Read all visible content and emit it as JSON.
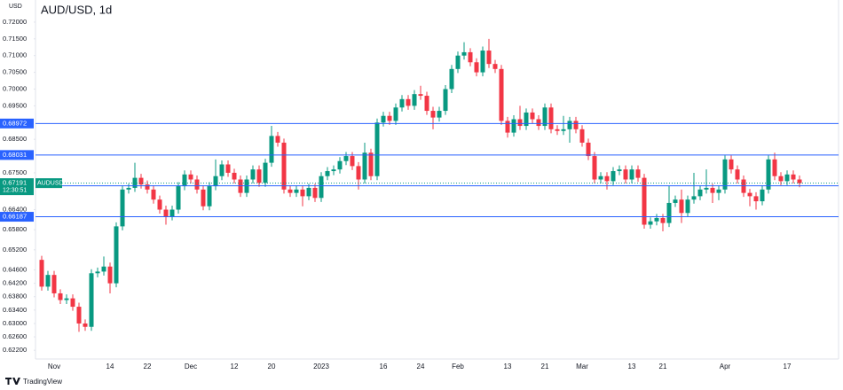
{
  "chart_data": {
    "type": "candlestick",
    "title": "AUD/USD, 1d",
    "y_axis_label": "USD",
    "categories": [
      null,
      null,
      "Nov",
      null,
      null,
      null,
      null,
      null,
      null,
      null,
      null,
      "14",
      null,
      null,
      null,
      null,
      null,
      "22",
      null,
      null,
      null,
      null,
      null,
      null,
      "Dec",
      null,
      null,
      null,
      null,
      null,
      null,
      "12",
      null,
      null,
      null,
      null,
      null,
      "20",
      null,
      null,
      null,
      null,
      null,
      null,
      null,
      "2023",
      null,
      null,
      null,
      null,
      null,
      null,
      null,
      null,
      null,
      "16",
      null,
      null,
      null,
      null,
      null,
      "24",
      null,
      null,
      null,
      null,
      null,
      "Feb",
      null,
      null,
      null,
      null,
      null,
      null,
      null,
      "13",
      null,
      null,
      null,
      null,
      null,
      "21",
      null,
      null,
      null,
      null,
      null,
      "Mar",
      null,
      null,
      null,
      null,
      null,
      null,
      null,
      "13",
      null,
      null,
      null,
      null,
      "21",
      null,
      null,
      null,
      null,
      null,
      null,
      null,
      null,
      null,
      "Apr",
      null,
      null,
      null,
      null,
      null,
      null,
      null,
      null,
      null,
      "17",
      null,
      null
    ],
    "open": [
      0.649,
      0.641,
      0.6445,
      0.639,
      0.637,
      0.6375,
      0.635,
      0.63,
      0.629,
      0.645,
      0.6455,
      0.647,
      0.642,
      0.659,
      0.67,
      0.6705,
      0.6735,
      0.6715,
      0.67,
      0.667,
      0.664,
      0.662,
      0.664,
      0.671,
      0.6745,
      0.673,
      0.67,
      0.665,
      0.671,
      0.674,
      0.6775,
      0.675,
      0.673,
      0.669,
      0.673,
      0.676,
      0.672,
      0.678,
      0.686,
      0.684,
      0.67,
      0.669,
      0.67,
      0.668,
      0.6705,
      0.6675,
      0.674,
      0.6755,
      0.676,
      0.6785,
      0.68,
      0.677,
      0.673,
      0.681,
      0.674,
      0.69,
      0.692,
      0.6905,
      0.6945,
      0.697,
      0.695,
      0.6985,
      0.698,
      0.6935,
      0.6915,
      0.6935,
      0.7,
      0.706,
      0.71,
      0.711,
      0.708,
      0.705,
      0.7115,
      0.7075,
      0.706,
      0.6905,
      0.687,
      0.691,
      0.689,
      0.693,
      0.691,
      0.689,
      0.6945,
      0.688,
      0.6875,
      0.688,
      0.6905,
      0.688,
      0.684,
      0.68,
      0.673,
      0.674,
      0.6725,
      0.6755,
      0.676,
      0.673,
      0.676,
      0.6735,
      0.6595,
      0.6605,
      0.6615,
      0.66,
      0.666,
      0.667,
      0.663,
      0.667,
      0.668,
      0.67,
      0.6705,
      0.669,
      0.67,
      0.679,
      0.676,
      0.673,
      0.669,
      0.668,
      0.6665,
      0.67,
      0.679,
      0.674,
      0.6725,
      0.6745,
      0.673
    ],
    "high": [
      0.6502,
      0.6457,
      0.6457,
      0.6402,
      0.6387,
      0.6387,
      0.6362,
      0.6312,
      0.6462,
      0.6467,
      0.65,
      0.6482,
      0.6602,
      0.6712,
      0.6717,
      0.678,
      0.6747,
      0.6727,
      0.6712,
      0.6682,
      0.6652,
      0.6652,
      0.6722,
      0.6757,
      0.6757,
      0.6742,
      0.6712,
      0.6722,
      0.679,
      0.6787,
      0.6787,
      0.6762,
      0.6742,
      0.6742,
      0.6772,
      0.6772,
      0.6792,
      0.689,
      0.6872,
      0.6852,
      0.6712,
      0.6712,
      0.6712,
      0.6717,
      0.6717,
      0.6752,
      0.6767,
      0.6772,
      0.6797,
      0.6812,
      0.6812,
      0.6782,
      0.684,
      0.6822,
      0.6912,
      0.6932,
      0.6932,
      0.6957,
      0.6982,
      0.6982,
      0.6997,
      0.701,
      0.6992,
      0.6947,
      0.6947,
      0.7012,
      0.7072,
      0.7112,
      0.714,
      0.7122,
      0.7092,
      0.7127,
      0.715,
      0.7087,
      0.7072,
      0.6917,
      0.6922,
      0.695,
      0.6942,
      0.6942,
      0.6922,
      0.6957,
      0.6957,
      0.6892,
      0.692,
      0.6917,
      0.6917,
      0.6892,
      0.6852,
      0.6812,
      0.6752,
      0.6752,
      0.6767,
      0.6772,
      0.6772,
      0.6772,
      0.6772,
      0.6747,
      0.6617,
      0.6627,
      0.6627,
      0.671,
      0.6682,
      0.67,
      0.6682,
      0.675,
      0.6712,
      0.676,
      0.6717,
      0.6712,
      0.6802,
      0.6802,
      0.6772,
      0.6742,
      0.6702,
      0.6692,
      0.6712,
      0.6802,
      0.681,
      0.6752,
      0.6757,
      0.6757,
      0.6742
    ],
    "low": [
      0.6398,
      0.6398,
      0.6378,
      0.6358,
      0.6358,
      0.6338,
      0.6275,
      0.6278,
      0.6278,
      0.6438,
      0.6443,
      0.639,
      0.6408,
      0.6578,
      0.6688,
      0.6693,
      0.6703,
      0.6688,
      0.6658,
      0.6628,
      0.6595,
      0.6608,
      0.6628,
      0.6698,
      0.6718,
      0.6688,
      0.6638,
      0.6638,
      0.6698,
      0.6728,
      0.6738,
      0.6718,
      0.6678,
      0.6678,
      0.6718,
      0.6708,
      0.6708,
      0.6768,
      0.6828,
      0.6688,
      0.6678,
      0.6678,
      0.665,
      0.6668,
      0.6663,
      0.6663,
      0.6728,
      0.6743,
      0.6748,
      0.6773,
      0.6758,
      0.67,
      0.6718,
      0.6728,
      0.6728,
      0.6888,
      0.6893,
      0.6893,
      0.6933,
      0.6938,
      0.6938,
      0.6968,
      0.6923,
      0.688,
      0.6903,
      0.6923,
      0.6988,
      0.7048,
      0.7088,
      0.7068,
      0.7038,
      0.7038,
      0.7063,
      0.7048,
      0.6893,
      0.6855,
      0.6858,
      0.6878,
      0.6878,
      0.6898,
      0.6878,
      0.6878,
      0.6868,
      0.6863,
      0.6863,
      0.684,
      0.6868,
      0.6828,
      0.6788,
      0.6718,
      0.6718,
      0.67,
      0.6713,
      0.6743,
      0.6718,
      0.6718,
      0.6723,
      0.6583,
      0.6583,
      0.6593,
      0.6575,
      0.6588,
      0.6648,
      0.66,
      0.6618,
      0.6658,
      0.6668,
      0.6688,
      0.666,
      0.6668,
      0.6688,
      0.6748,
      0.6718,
      0.6678,
      0.665,
      0.664,
      0.6653,
      0.6688,
      0.6728,
      0.6713,
      0.6713,
      0.6718,
      0.6707
    ],
    "close": [
      0.641,
      0.6445,
      0.639,
      0.637,
      0.6375,
      0.635,
      0.63,
      0.629,
      0.645,
      0.6455,
      0.647,
      0.642,
      0.659,
      0.67,
      0.6705,
      0.6735,
      0.6715,
      0.67,
      0.667,
      0.664,
      0.662,
      0.664,
      0.671,
      0.6745,
      0.673,
      0.67,
      0.665,
      0.671,
      0.674,
      0.6775,
      0.675,
      0.673,
      0.669,
      0.673,
      0.676,
      0.672,
      0.678,
      0.686,
      0.684,
      0.67,
      0.669,
      0.67,
      0.668,
      0.6705,
      0.6675,
      0.674,
      0.6755,
      0.676,
      0.6785,
      0.68,
      0.677,
      0.673,
      0.681,
      0.674,
      0.69,
      0.692,
      0.6905,
      0.6945,
      0.697,
      0.695,
      0.6985,
      0.698,
      0.6935,
      0.6915,
      0.6935,
      0.7,
      0.706,
      0.71,
      0.711,
      0.708,
      0.705,
      0.7115,
      0.7075,
      0.706,
      0.6905,
      0.687,
      0.691,
      0.689,
      0.693,
      0.691,
      0.689,
      0.6945,
      0.688,
      0.6875,
      0.688,
      0.6905,
      0.688,
      0.684,
      0.68,
      0.673,
      0.674,
      0.6725,
      0.6755,
      0.676,
      0.673,
      0.676,
      0.6735,
      0.6595,
      0.6605,
      0.6615,
      0.66,
      0.666,
      0.667,
      0.663,
      0.667,
      0.668,
      0.67,
      0.6705,
      0.669,
      0.67,
      0.679,
      0.676,
      0.673,
      0.669,
      0.668,
      0.6665,
      0.67,
      0.679,
      0.674,
      0.6725,
      0.6745,
      0.673,
      0.6719
    ],
    "up_color": "#089981",
    "down_color": "#f23645",
    "ylim": [
      0.6194,
      0.7266
    ],
    "yticks": [
      {
        "value": 0.72,
        "label": "0.72000"
      },
      {
        "value": 0.715,
        "label": "0.71500"
      },
      {
        "value": 0.71,
        "label": "0.71000"
      },
      {
        "value": 0.705,
        "label": "0.70500"
      },
      {
        "value": 0.7,
        "label": "0.70000"
      },
      {
        "value": 0.695,
        "label": "0.69500"
      },
      {
        "value": 0.685,
        "label": "0.68500"
      },
      {
        "value": 0.675,
        "label": "0.67500"
      },
      {
        "value": 0.664,
        "label": "0.66400"
      },
      {
        "value": 0.658,
        "label": "0.65800"
      },
      {
        "value": 0.652,
        "label": "0.65200"
      },
      {
        "value": 0.646,
        "label": "0.64600"
      },
      {
        "value": 0.642,
        "label": "0.64200"
      },
      {
        "value": 0.638,
        "label": "0.63800"
      },
      {
        "value": 0.634,
        "label": "0.63400"
      },
      {
        "value": 0.63,
        "label": "0.63000"
      },
      {
        "value": 0.626,
        "label": "0.62600"
      },
      {
        "value": 0.622,
        "label": "0.62200"
      }
    ],
    "levels": [
      0.68972,
      0.68031,
      0.67112,
      0.66187
    ],
    "level_color": "#2962ff",
    "last_price": 0.67191,
    "symbol": "AUDUSD",
    "countdown": "12:30:51"
  },
  "footer": {
    "brand": "TradingView"
  }
}
